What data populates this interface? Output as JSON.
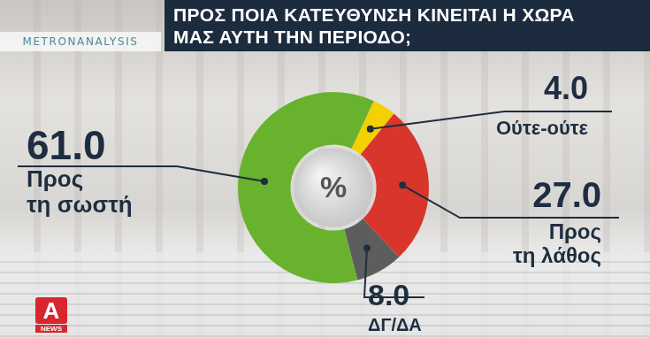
{
  "chart_data": {
    "type": "doughnut",
    "title": "ΠΡΟΣ ΠΟΙΑ ΚΑΤΕΥΘΥΝΣΗ ΚΙΝΕΙΤΑΙ Η ΧΩΡΑ ΜΑΣ ΑΥΤΗ ΤΗΝ ΠΕΡΙΟΔΟ;",
    "source": "METRONANALYSIS",
    "center_label": "%",
    "logo": [
      "A",
      "NEWS"
    ],
    "categories": [
      "Ούτε-ούτε",
      "Προς τη λάθος",
      "ΔΓ/ΔΑ",
      "Προς τη σωστή"
    ],
    "values": [
      4,
      27,
      8,
      61
    ],
    "value_labels": [
      "4.0",
      "27.0",
      "8.0",
      "61.0"
    ],
    "colors": [
      "#f3d000",
      "#d8352c",
      "#5d5d5d",
      "#69b22e"
    ],
    "data_labels": true
  }
}
